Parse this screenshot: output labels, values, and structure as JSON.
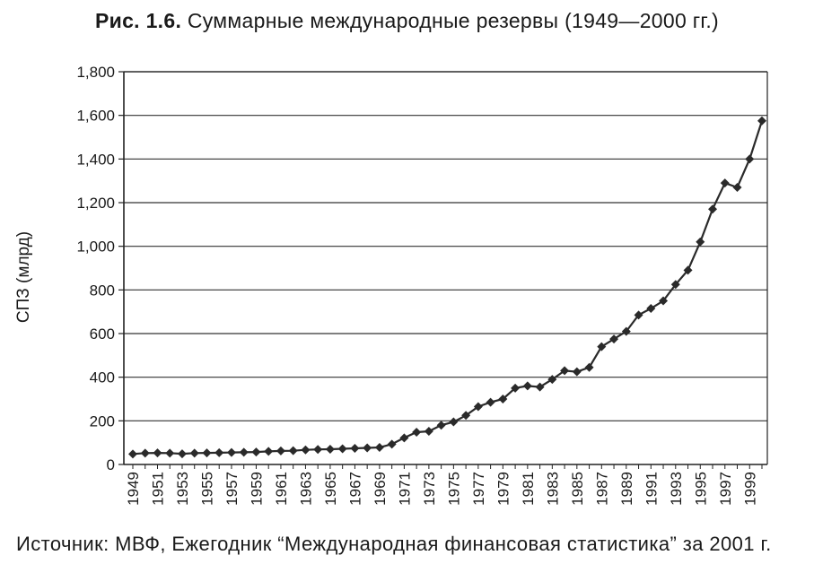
{
  "figure": {
    "label": "Рис. 1.6.",
    "title": "Суммарные международные резервы (1949—2000 гг.)",
    "source": "Источник: МВФ, Ежегодник “Международная финансовая статистика” за 2001 г."
  },
  "chart_data": {
    "type": "line",
    "title": "Суммарные международные резервы (1949—2000 гг.)",
    "xlabel": "",
    "ylabel": "СПЗ (млрд)",
    "ylim": [
      0,
      1800
    ],
    "yticks": [
      0,
      200,
      400,
      600,
      800,
      1000,
      1200,
      1400,
      1600,
      1800
    ],
    "ytick_labels": [
      "0",
      "200",
      "400",
      "600",
      "800",
      "1,000",
      "1,200",
      "1,400",
      "1,600",
      "1,800"
    ],
    "xtick_labels": [
      "1949",
      "1951",
      "1953",
      "1955",
      "1957",
      "1959",
      "1961",
      "1963",
      "1965",
      "1967",
      "1969",
      "1971",
      "1973",
      "1975",
      "1977",
      "1979",
      "1981",
      "1983",
      "1985",
      "1987",
      "1989",
      "1991",
      "1993",
      "1995",
      "1997",
      "1999"
    ],
    "grid": true,
    "marker": "diamond",
    "color": "#2a2a2a",
    "x": [
      1949,
      1950,
      1951,
      1952,
      1953,
      1954,
      1955,
      1956,
      1957,
      1958,
      1959,
      1960,
      1961,
      1962,
      1963,
      1964,
      1965,
      1966,
      1967,
      1968,
      1969,
      1970,
      1971,
      1972,
      1973,
      1974,
      1975,
      1976,
      1977,
      1978,
      1979,
      1980,
      1981,
      1982,
      1983,
      1984,
      1985,
      1986,
      1987,
      1988,
      1989,
      1990,
      1991,
      1992,
      1993,
      1994,
      1995,
      1996,
      1997,
      1998,
      1999,
      2000
    ],
    "values": [
      48,
      52,
      53,
      52,
      49,
      52,
      53,
      54,
      55,
      56,
      57,
      60,
      62,
      63,
      67,
      69,
      70,
      72,
      74,
      76,
      78,
      93,
      122,
      148,
      152,
      180,
      195,
      225,
      265,
      285,
      300,
      350,
      360,
      355,
      390,
      430,
      425,
      445,
      540,
      575,
      610,
      685,
      715,
      750,
      825,
      890,
      1020,
      1170,
      1290,
      1270,
      1400,
      1575
    ]
  }
}
